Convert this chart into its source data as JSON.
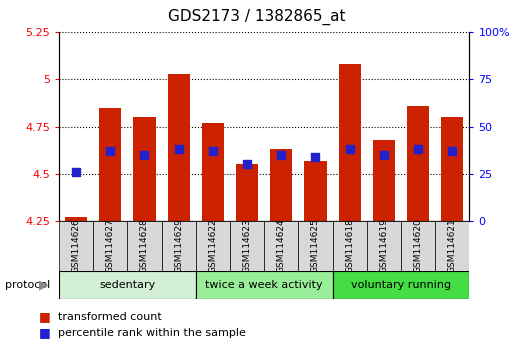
{
  "title": "GDS2173 / 1382865_at",
  "samples": [
    "GSM114626",
    "GSM114627",
    "GSM114628",
    "GSM114629",
    "GSM114622",
    "GSM114623",
    "GSM114624",
    "GSM114625",
    "GSM114618",
    "GSM114619",
    "GSM114620",
    "GSM114621"
  ],
  "transformed_count": [
    4.27,
    4.85,
    4.8,
    5.03,
    4.77,
    4.55,
    4.63,
    4.57,
    5.08,
    4.68,
    4.86,
    4.8
  ],
  "percentile_rank": [
    26,
    37,
    35,
    38,
    37,
    30,
    35,
    34,
    38,
    35,
    38,
    37
  ],
  "groups": [
    {
      "label": "sedentary",
      "indices": [
        0,
        1,
        2,
        3
      ],
      "color": "#d4f0d4"
    },
    {
      "label": "twice a week activity",
      "indices": [
        4,
        5,
        6,
        7
      ],
      "color": "#99ee99"
    },
    {
      "label": "voluntary running",
      "indices": [
        8,
        9,
        10,
        11
      ],
      "color": "#44dd44"
    }
  ],
  "ylim_left": [
    4.25,
    5.25
  ],
  "ylim_right": [
    0,
    100
  ],
  "yticks_left": [
    4.25,
    4.5,
    4.75,
    5.0,
    5.25
  ],
  "yticks_right": [
    0,
    25,
    50,
    75,
    100
  ],
  "ytick_labels_left": [
    "4.25",
    "4.5",
    "4.75",
    "5",
    "5.25"
  ],
  "ytick_labels_right": [
    "0",
    "25",
    "50",
    "75",
    "100%"
  ],
  "bar_color": "#cc2200",
  "dot_color": "#2222cc",
  "bar_bottom": 4.25,
  "bar_width": 0.65,
  "dot_size": 40,
  "legend_labels": [
    "transformed count",
    "percentile rank within the sample"
  ],
  "legend_colors": [
    "#cc2200",
    "#2222cc"
  ],
  "protocol_label": "protocol",
  "title_fontsize": 11,
  "tick_fontsize": 8,
  "sample_fontsize": 6.5,
  "proto_fontsize": 8,
  "legend_fontsize": 8
}
